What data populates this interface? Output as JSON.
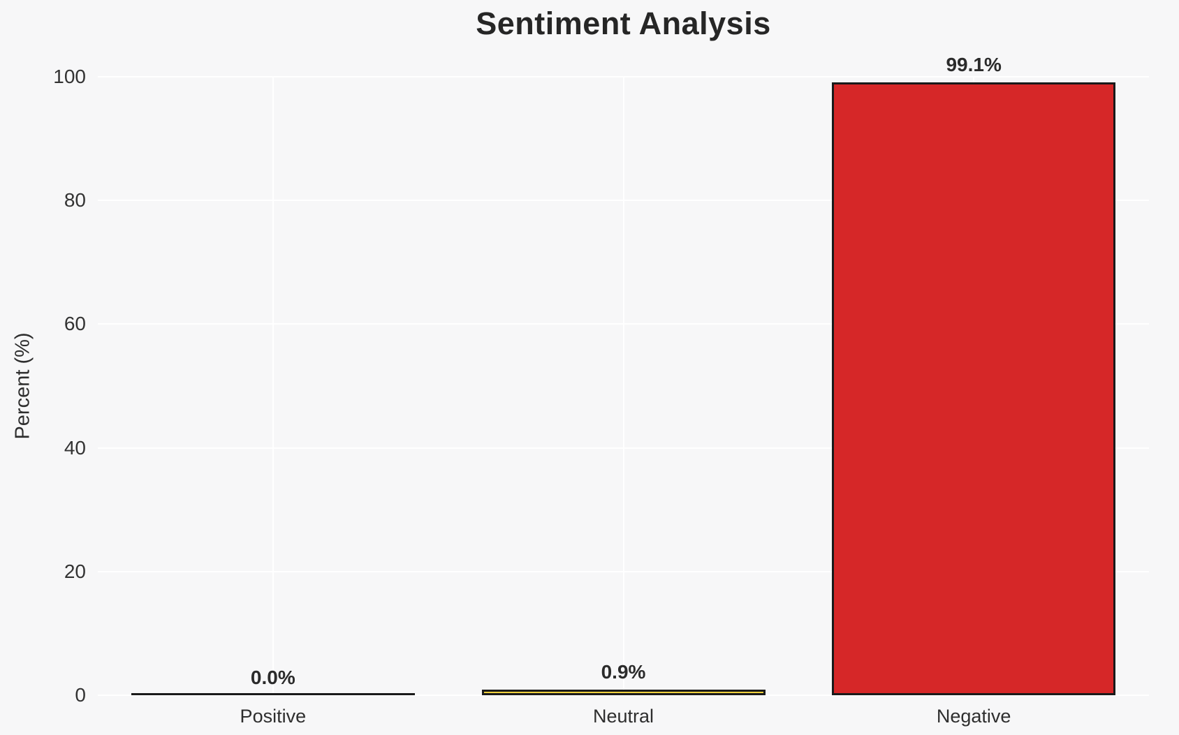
{
  "page": {
    "background_color": "#f7f7f8"
  },
  "chart_data": {
    "type": "bar",
    "title": "Sentiment Analysis",
    "xlabel": "",
    "ylabel": "Percent (%)",
    "categories": [
      "Positive",
      "Neutral",
      "Negative"
    ],
    "values": [
      0.0,
      0.9,
      99.1
    ],
    "value_labels": [
      "0.0%",
      "0.9%",
      "99.1%"
    ],
    "bar_colors": [
      null,
      "#f0d13c",
      "#d62728"
    ],
    "bar_edge_color": "#1a1a1a",
    "ylim": [
      0,
      100
    ],
    "yticks": [
      0,
      20,
      40,
      60,
      80,
      100
    ],
    "grid": "on",
    "gridline_color": "#ffffff",
    "legend_position": "none",
    "text_color": "#2e2e2e"
  }
}
